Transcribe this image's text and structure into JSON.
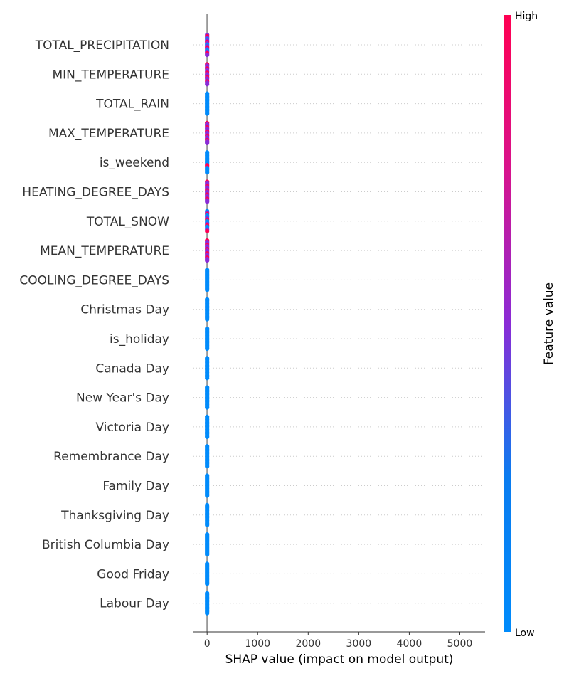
{
  "chart_data": {
    "type": "scatter",
    "subtype": "shap-beeswarm",
    "title": "",
    "xlabel": "SHAP value (impact on model output)",
    "ylabel": "",
    "xlim": [
      -270,
      5500
    ],
    "xticks": [
      0,
      1000,
      2000,
      3000,
      4000,
      5000
    ],
    "grid": false,
    "features": [
      {
        "name": "TOTAL_PRECIPITATION",
        "mix": "mixed"
      },
      {
        "name": "MIN_TEMPERATURE",
        "mix": "high"
      },
      {
        "name": "TOTAL_RAIN",
        "mix": "low"
      },
      {
        "name": "MAX_TEMPERATURE",
        "mix": "high"
      },
      {
        "name": "is_weekend",
        "mix": "low-with-high"
      },
      {
        "name": "HEATING_DEGREE_DAYS",
        "mix": "high"
      },
      {
        "name": "TOTAL_SNOW",
        "mix": "mixed-low"
      },
      {
        "name": "MEAN_TEMPERATURE",
        "mix": "high"
      },
      {
        "name": "COOLING_DEGREE_DAYS",
        "mix": "low"
      },
      {
        "name": "Christmas Day",
        "mix": "low"
      },
      {
        "name": "is_holiday",
        "mix": "low"
      },
      {
        "name": "Canada Day",
        "mix": "low"
      },
      {
        "name": "New Year's Day",
        "mix": "low"
      },
      {
        "name": "Victoria Day",
        "mix": "low"
      },
      {
        "name": "Remembrance Day",
        "mix": "low"
      },
      {
        "name": "Family Day",
        "mix": "low"
      },
      {
        "name": "Thanksgiving Day",
        "mix": "low"
      },
      {
        "name": "British Columbia Day",
        "mix": "low"
      },
      {
        "name": "Good Friday",
        "mix": "low"
      },
      {
        "name": "Labour Day",
        "mix": "low"
      }
    ],
    "shap_value_approx": 0,
    "colorbar": {
      "title": "Feature value",
      "high_label": "High",
      "low_label": "Low",
      "high_color": "#ff0052",
      "mid_color": "#8a2bd6",
      "low_color": "#008bfb"
    }
  }
}
